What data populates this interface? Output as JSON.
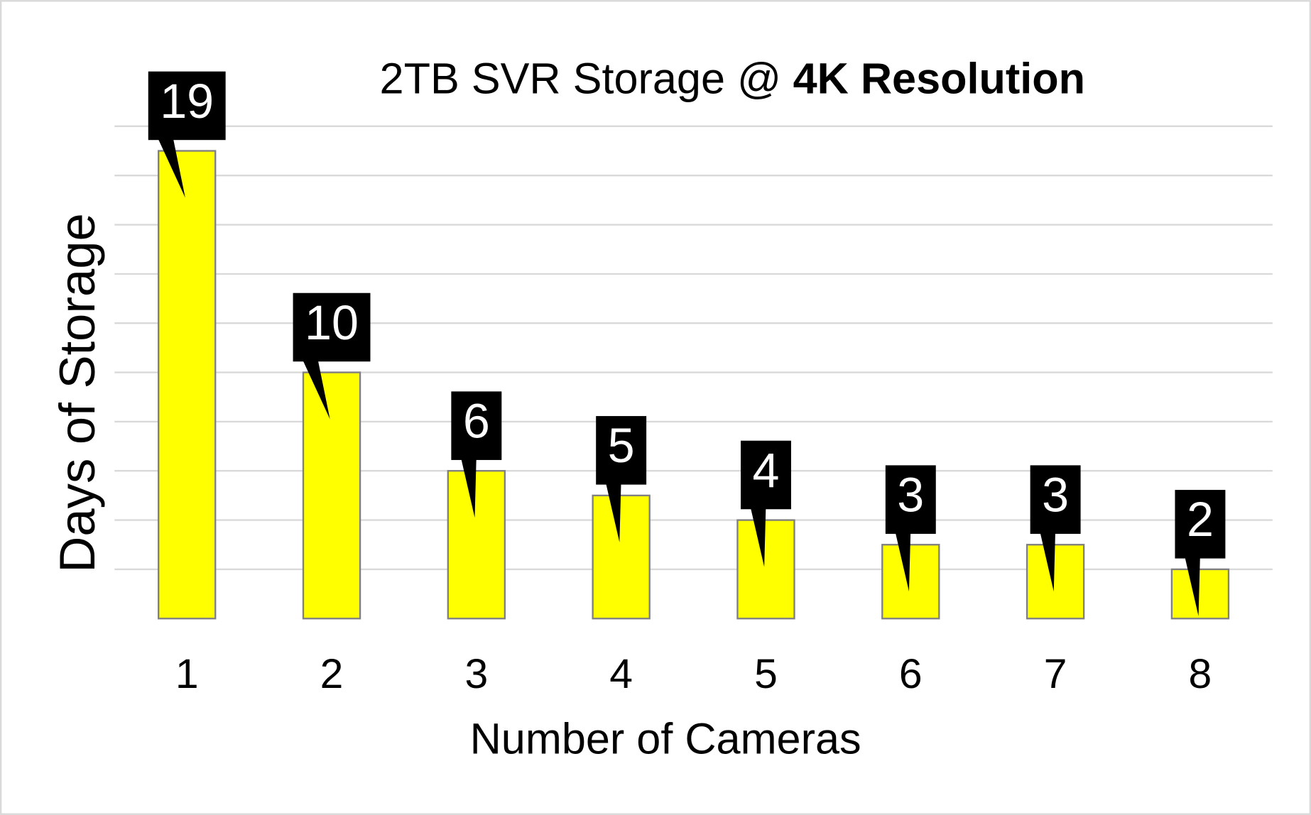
{
  "chart_data": {
    "type": "bar",
    "title_parts": [
      {
        "text": "2TB SVR Storage @",
        "bold": false
      },
      {
        "text": "4K Resolution",
        "bold": true
      }
    ],
    "x_label": "Number of Cameras",
    "y_label": "Days of Storage",
    "categories": [
      "1",
      "2",
      "3",
      "4",
      "5",
      "6",
      "7",
      "8"
    ],
    "values": [
      19,
      10,
      6,
      5,
      4,
      3,
      3,
      2
    ],
    "color": "#ffff00",
    "ylim": [
      0,
      20
    ],
    "yticks": [
      2,
      4,
      6,
      8,
      10,
      12,
      14,
      16,
      18,
      20
    ],
    "grid": true
  }
}
